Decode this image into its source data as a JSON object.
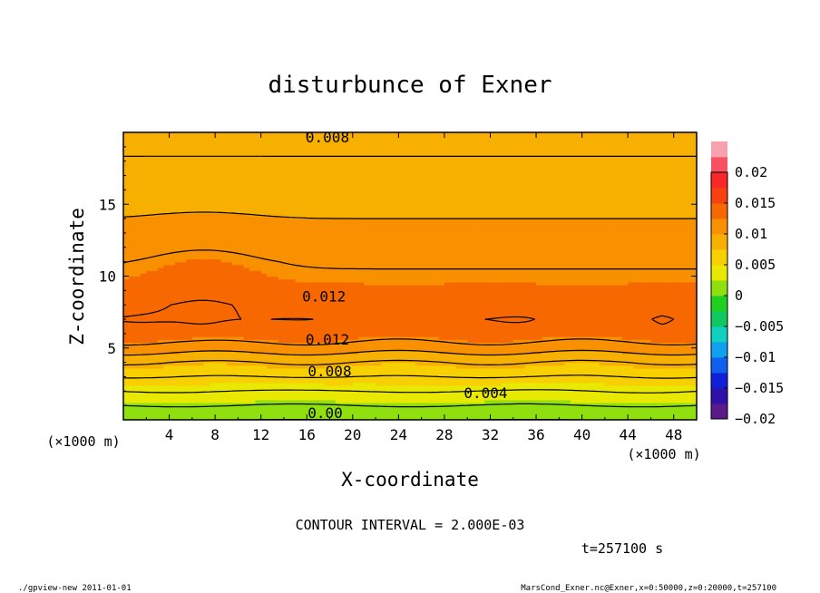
{
  "chart_data": {
    "type": "heatmap",
    "title": "disturbunce of Exner",
    "xlabel": "X-coordinate",
    "ylabel": "Z-coordinate",
    "x_unit_left": "(×1000 m)",
    "x_unit_right": "(×1000 m)",
    "xlim": [
      0,
      50
    ],
    "ylim": [
      0,
      20
    ],
    "x_ticks": [
      4,
      8,
      12,
      16,
      20,
      24,
      28,
      32,
      36,
      40,
      44,
      48
    ],
    "y_ticks": [
      5,
      10,
      15
    ],
    "contour_interval_text": "CONTOUR INTERVAL = 2.000E-03",
    "time_text": "t=257100 s",
    "colorbar": {
      "range": [
        -0.02,
        0.02
      ],
      "step": 0.0025,
      "tick_values": [
        0.02,
        0.015,
        0.01,
        0.005,
        0,
        -0.005,
        -0.01,
        -0.015,
        -0.02
      ],
      "tick_labels": [
        "0.02",
        "0.015",
        "0.01",
        "0.005",
        "0",
        "−0.005",
        "−0.01",
        "−0.015",
        "−0.02"
      ],
      "colors": [
        "#5a1a8a",
        "#3010a8",
        "#1020d8",
        "#1060f0",
        "#10a0f0",
        "#10d0c0",
        "#10c860",
        "#20d020",
        "#90e010",
        "#e8e800",
        "#f8d000",
        "#f8b000",
        "#f89000",
        "#f86800",
        "#f84010",
        "#f82828",
        "#f85060",
        "#f8a0b0"
      ]
    },
    "field_profile": {
      "z": [
        0,
        0.5,
        1,
        1.5,
        2,
        2.5,
        3,
        3.5,
        4,
        4.5,
        5,
        5.5,
        6,
        7,
        8,
        9,
        10,
        11,
        12,
        13,
        14,
        15,
        16,
        17,
        18,
        19,
        20
      ],
      "value": [
        0.0,
        0.001,
        0.002,
        0.003,
        0.004,
        0.005,
        0.006,
        0.007,
        0.008,
        0.0095,
        0.011,
        0.0122,
        0.0132,
        0.0138,
        0.0135,
        0.0128,
        0.0122,
        0.0118,
        0.0112,
        0.0106,
        0.01,
        0.0096,
        0.009,
        0.0086,
        0.0081,
        0.0078,
        0.0075
      ]
    },
    "contour_labels": [
      {
        "text": "0.008",
        "x": 17.8,
        "z": 19.7
      },
      {
        "text": "0.012",
        "x": 17.5,
        "z": 8.6
      },
      {
        "text": "0.012",
        "x": 17.8,
        "z": 5.6
      },
      {
        "text": "0.008",
        "x": 18.0,
        "z": 3.4
      },
      {
        "text": "0.004",
        "x": 31.6,
        "z": 1.9
      },
      {
        "text": "0.00",
        "x": 17.6,
        "z": 0.5
      }
    ]
  },
  "footer": {
    "left": "./gpview-new   2011-01-01",
    "right": "MarsCond_Exner.nc@Exner,x=0:50000,z=0:20000,t=257100"
  }
}
